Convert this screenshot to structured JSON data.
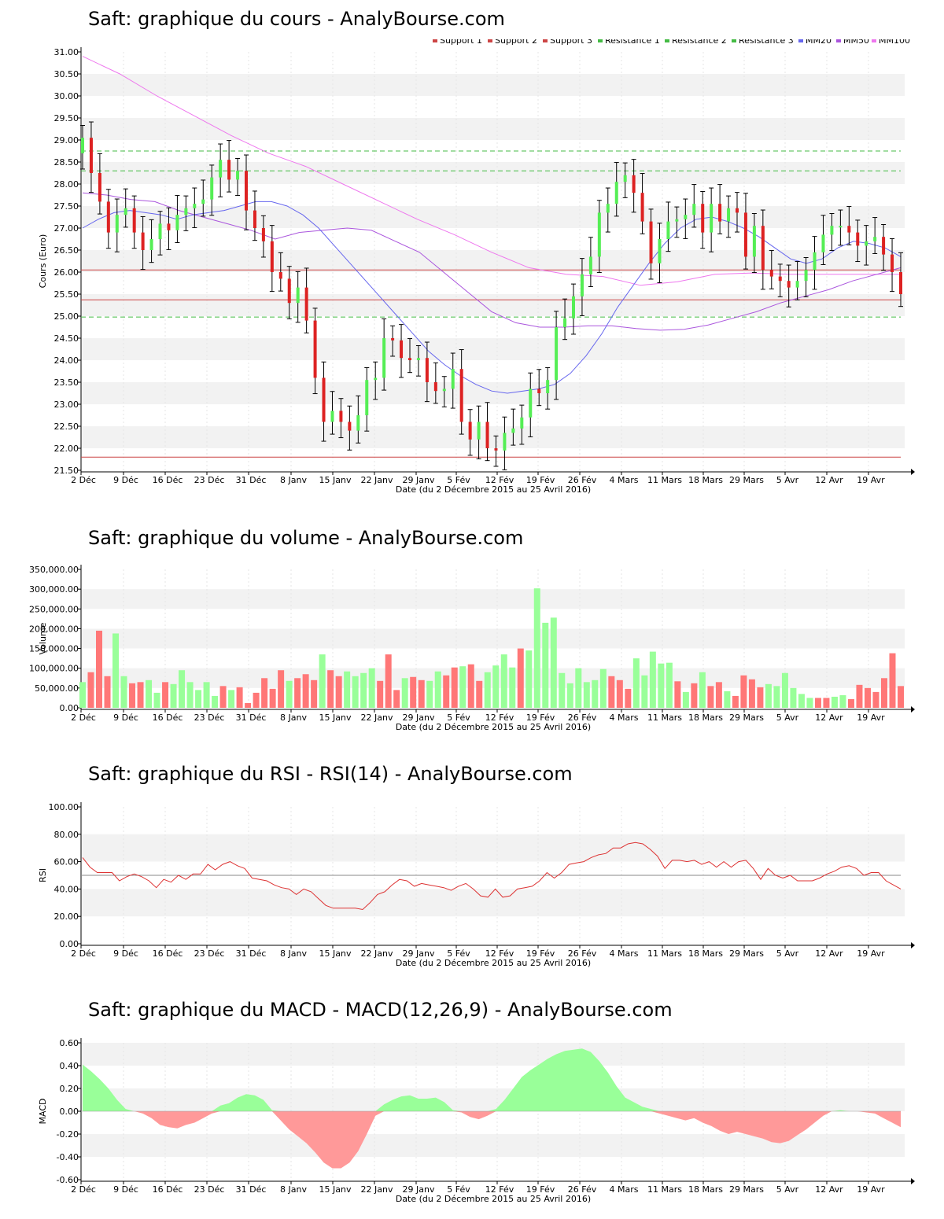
{
  "titles": {
    "price": "Saft: graphique du cours - AnalyBourse.com",
    "volume": "Saft: graphique du volume - AnalyBourse.com",
    "rsi": "Saft: graphique du RSI - RSI(14) - AnalyBourse.com",
    "macd": "Saft: graphique du MACD - MACD(12,26,9) - AnalyBourse.com"
  },
  "x_axis_label": "Date (du 2 Décembre 2015 au 25 Avril 2016)",
  "x_ticks": [
    "2 Déc",
    "9 Déc",
    "16 Déc",
    "23 Déc",
    "31 Déc",
    "8 Janv",
    "15 Janv",
    "22 Janv",
    "29 Janv",
    "5 Fév",
    "12 Fév",
    "19 Fév",
    "26 Fév",
    "4 Mars",
    "11 Mars",
    "18 Mars",
    "29 Mars",
    "5 Avr",
    "12 Avr",
    "19 Avr"
  ],
  "colors": {
    "up": "#55ee55",
    "down": "#dd2222",
    "vol_up": "#99ff99",
    "vol_down": "#ff7777",
    "macd_pos": "#99ff99",
    "macd_neg": "#ff9999",
    "ma20": "#6666ee",
    "ma50": "#aa55dd",
    "ma100": "#ee77ee",
    "support": "#cc4444",
    "resistance": "#44bb44",
    "band": "#f2f2f2"
  },
  "chart_data": [
    {
      "id": "price",
      "type": "candlestick",
      "title": "Saft: graphique du cours - AnalyBourse.com",
      "ylabel": "Cours (Euro)",
      "ylim": [
        21.5,
        31.0
      ],
      "yticks": [
        "21.50",
        "22.00",
        "22.50",
        "23.00",
        "23.50",
        "24.00",
        "24.50",
        "25.00",
        "25.50",
        "26.00",
        "26.50",
        "27.00",
        "27.50",
        "28.00",
        "28.50",
        "29.00",
        "29.50",
        "30.00",
        "30.50",
        "31.00"
      ],
      "legend": [
        "Support 1",
        "Support 2",
        "Support 3",
        "Résistance 1",
        "Résistance 2",
        "Résistance 3",
        "MM20",
        "MM50",
        "MM100"
      ],
      "support_levels": [
        21.8,
        25.37,
        26.05
      ],
      "resistance_levels": [
        24.98,
        28.3,
        28.75
      ],
      "closes": [
        29.05,
        28.25,
        27.6,
        26.9,
        27.3,
        27.45,
        26.9,
        26.5,
        26.75,
        27.1,
        26.95,
        27.3,
        27.45,
        27.55,
        27.65,
        28.15,
        28.55,
        28.1,
        28.3,
        27.4,
        27.0,
        26.7,
        26.0,
        25.85,
        25.3,
        25.65,
        24.9,
        23.6,
        22.6,
        22.85,
        22.6,
        22.4,
        22.75,
        23.55,
        23.6,
        24.5,
        24.45,
        24.05,
        24.0,
        24.05,
        23.5,
        23.3,
        23.35,
        23.8,
        22.6,
        22.2,
        22.6,
        22.0,
        21.95,
        22.35,
        22.45,
        22.7,
        23.35,
        23.25,
        23.55,
        24.75,
        24.95,
        25.45,
        25.95,
        26.35,
        27.35,
        27.55,
        28.05,
        28.2,
        27.8,
        27.15,
        26.2,
        26.75,
        27.15,
        27.2,
        27.3,
        27.55,
        26.9,
        27.55,
        27.15,
        27.45,
        27.35,
        26.35,
        27.05,
        26.05,
        25.9,
        25.8,
        25.65,
        25.8,
        26.05,
        26.45,
        26.85,
        27.05,
        27.05,
        26.9,
        26.6,
        26.7,
        26.8,
        26.4,
        26.0,
        25.5
      ],
      "ma20": [
        27.0,
        27.2,
        27.35,
        27.4,
        27.35,
        27.3,
        27.2,
        27.3,
        27.35,
        27.4,
        27.5,
        27.6,
        27.6,
        27.5,
        27.3,
        27.0,
        26.6,
        26.2,
        25.8,
        25.4,
        25.0,
        24.6,
        24.2,
        23.9,
        23.65,
        23.45,
        23.3,
        23.25,
        23.3,
        23.35,
        23.45,
        23.7,
        24.1,
        24.6,
        25.2,
        25.7,
        26.2,
        26.65,
        27.0,
        27.2,
        27.25,
        27.15,
        27.0,
        26.8,
        26.55,
        26.3,
        26.2,
        26.3,
        26.55,
        26.7,
        26.65,
        26.55,
        26.35
      ],
      "ma50": [
        27.8,
        27.75,
        27.65,
        27.6,
        27.4,
        27.25,
        27.1,
        26.95,
        26.75,
        26.9,
        26.95,
        27.0,
        26.95,
        26.7,
        26.45,
        26.0,
        25.55,
        25.1,
        24.85,
        24.75,
        24.75,
        24.78,
        24.78,
        24.72,
        24.68,
        24.7,
        24.8,
        24.95,
        25.1,
        25.3,
        25.45,
        25.6,
        25.8,
        25.95,
        26.1
      ],
      "ma100": [
        30.9,
        30.5,
        30.0,
        29.55,
        29.1,
        28.7,
        28.4,
        28.0,
        27.6,
        27.2,
        26.85,
        26.45,
        26.1,
        25.95,
        25.9,
        25.7,
        25.78,
        25.95,
        25.98,
        25.95,
        25.95,
        25.95,
        25.95
      ]
    },
    {
      "id": "volume",
      "type": "bar",
      "title": "Saft: graphique du volume - AnalyBourse.com",
      "ylabel": "Volume",
      "ylim": [
        0,
        350000
      ],
      "yticks": [
        "0.00",
        "50,000.00",
        "100,000.00",
        "150,000.00",
        "200,000.00",
        "250,000.00",
        "300,000.00",
        "350,000.00"
      ],
      "values": [
        65000,
        90000,
        195000,
        80000,
        188000,
        80000,
        62000,
        65000,
        70000,
        38000,
        65000,
        60000,
        95000,
        65000,
        45000,
        65000,
        30000,
        55000,
        45000,
        52000,
        12000,
        38000,
        75000,
        48000,
        95000,
        68000,
        75000,
        85000,
        70000,
        135000,
        95000,
        80000,
        92000,
        80000,
        88000,
        100000,
        68000,
        135000,
        45000,
        75000,
        78000,
        70000,
        68000,
        92000,
        82000,
        102000,
        105000,
        110000,
        68000,
        90000,
        107000,
        135000,
        102000,
        150000,
        145000,
        302000,
        215000,
        228000,
        88000,
        62000,
        100000,
        65000,
        70000,
        98000,
        80000,
        70000,
        48000,
        125000,
        82000,
        142000,
        112000,
        114000,
        67000,
        40000,
        62000,
        90000,
        55000,
        65000,
        42000,
        30000,
        82000,
        72000,
        52000,
        60000,
        55000,
        88000,
        50000,
        35000,
        25000,
        25000,
        25000,
        28000,
        32000,
        22000,
        58000,
        50000,
        40000,
        75000,
        138000,
        55000
      ]
    },
    {
      "id": "rsi",
      "type": "line",
      "title": "Saft: graphique du RSI - RSI(14) - AnalyBourse.com",
      "ylabel": "RSI",
      "ylim": [
        0,
        100
      ],
      "yticks": [
        "0.00",
        "20.00",
        "40.00",
        "60.00",
        "80.00",
        "100.00"
      ],
      "reference_line": 50,
      "values": [
        63,
        56,
        52,
        52,
        52,
        46,
        49,
        51,
        49,
        46,
        41,
        47,
        45,
        50,
        47,
        51,
        51,
        58,
        54,
        58,
        60,
        57,
        55,
        48,
        47,
        46,
        43,
        41,
        40,
        36,
        40,
        38,
        33,
        28,
        26,
        26,
        26,
        26,
        25,
        30,
        36,
        38,
        43,
        47,
        46,
        42,
        44,
        43,
        42,
        41,
        39,
        42,
        44,
        40,
        35,
        34,
        40,
        34,
        35,
        40,
        41,
        42,
        46,
        52,
        48,
        52,
        58,
        59,
        60,
        63,
        65,
        66,
        70,
        70,
        73,
        74,
        73,
        69,
        64,
        55,
        61,
        61,
        60,
        61,
        58,
        60,
        56,
        60,
        56,
        60,
        61,
        55,
        47,
        55,
        50,
        48,
        50,
        46,
        46,
        46,
        48,
        51,
        53,
        56,
        57,
        55,
        50,
        52,
        52,
        46,
        43,
        40
      ]
    },
    {
      "id": "macd",
      "type": "area",
      "title": "Saft: graphique du MACD - MACD(12,26,9) - AnalyBourse.com",
      "ylabel": "MACD",
      "ylim": [
        -0.6,
        0.6
      ],
      "yticks": [
        "-0.60",
        "-0.40",
        "-0.20",
        "0.00",
        "0.20",
        "0.40",
        "0.60"
      ],
      "values": [
        0.41,
        0.35,
        0.28,
        0.2,
        0.1,
        0.02,
        0.0,
        -0.02,
        -0.06,
        -0.12,
        -0.14,
        -0.15,
        -0.12,
        -0.1,
        -0.06,
        -0.02,
        0.05,
        0.07,
        0.12,
        0.15,
        0.14,
        0.1,
        0.01,
        -0.08,
        -0.16,
        -0.22,
        -0.28,
        -0.36,
        -0.45,
        -0.5,
        -0.5,
        -0.45,
        -0.35,
        -0.2,
        -0.04,
        0.06,
        0.1,
        0.13,
        0.14,
        0.11,
        0.11,
        0.12,
        0.08,
        0.01,
        -0.01,
        -0.05,
        -0.07,
        -0.04,
        0.02,
        0.1,
        0.2,
        0.3,
        0.36,
        0.41,
        0.46,
        0.5,
        0.53,
        0.54,
        0.55,
        0.52,
        0.44,
        0.34,
        0.22,
        0.12,
        0.08,
        0.04,
        0.02,
        -0.02,
        -0.04,
        -0.06,
        -0.08,
        -0.06,
        -0.1,
        -0.13,
        -0.17,
        -0.2,
        -0.18,
        -0.2,
        -0.22,
        -0.24,
        -0.27,
        -0.28,
        -0.26,
        -0.21,
        -0.16,
        -0.1,
        -0.04,
        0.0,
        0.01,
        0.0,
        0.0,
        -0.01,
        -0.02,
        -0.06,
        -0.1,
        -0.14
      ]
    }
  ]
}
